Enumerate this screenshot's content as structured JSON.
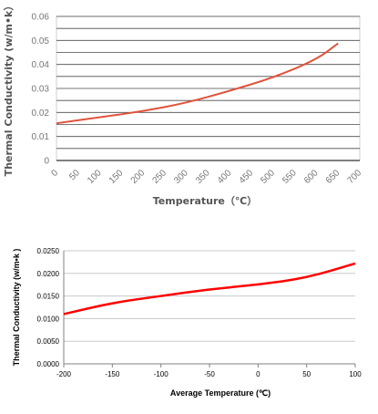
{
  "chart_data": [
    {
      "type": "line",
      "xlabel": "Temperature（℃）",
      "ylabel": "Thermal Conductivity (w/m•k）",
      "x_ticks": [
        "0",
        "50",
        "100",
        "150",
        "200",
        "250",
        "300",
        "350",
        "400",
        "450",
        "500",
        "550",
        "600",
        "650",
        "700"
      ],
      "y_ticks": [
        "0",
        "0.01",
        "0.02",
        "0.03",
        "0.04",
        "0.05",
        "0.06"
      ],
      "xlim": [
        0,
        700
      ],
      "ylim": [
        0,
        0.06
      ],
      "grid": true,
      "series": [
        {
          "color": "#e0533b",
          "x": [
            0,
            100,
            200,
            300,
            400,
            500,
            600,
            650
          ],
          "y": [
            0.0155,
            0.018,
            0.0205,
            0.024,
            0.029,
            0.0345,
            0.042,
            0.0488
          ]
        }
      ]
    },
    {
      "type": "line",
      "xlabel": "Average Temperature (℃)",
      "ylabel": "Thermal Conductivity (w/m•k )",
      "x_ticks": [
        "-200",
        "-150",
        "-100",
        "-50",
        "0",
        "50",
        "100"
      ],
      "y_ticks": [
        "0.0000",
        "0.0050",
        "0.0100",
        "0.0150",
        "0.0200",
        "0.0250"
      ],
      "xlim": [
        -200,
        100
      ],
      "ylim": [
        0,
        0.025
      ],
      "grid": true,
      "series": [
        {
          "color": "#ff0000",
          "x": [
            -200,
            -150,
            -100,
            -50,
            0,
            50,
            100
          ],
          "y": [
            0.011,
            0.0135,
            0.015,
            0.0165,
            0.0175,
            0.019,
            0.0222
          ]
        }
      ]
    }
  ]
}
